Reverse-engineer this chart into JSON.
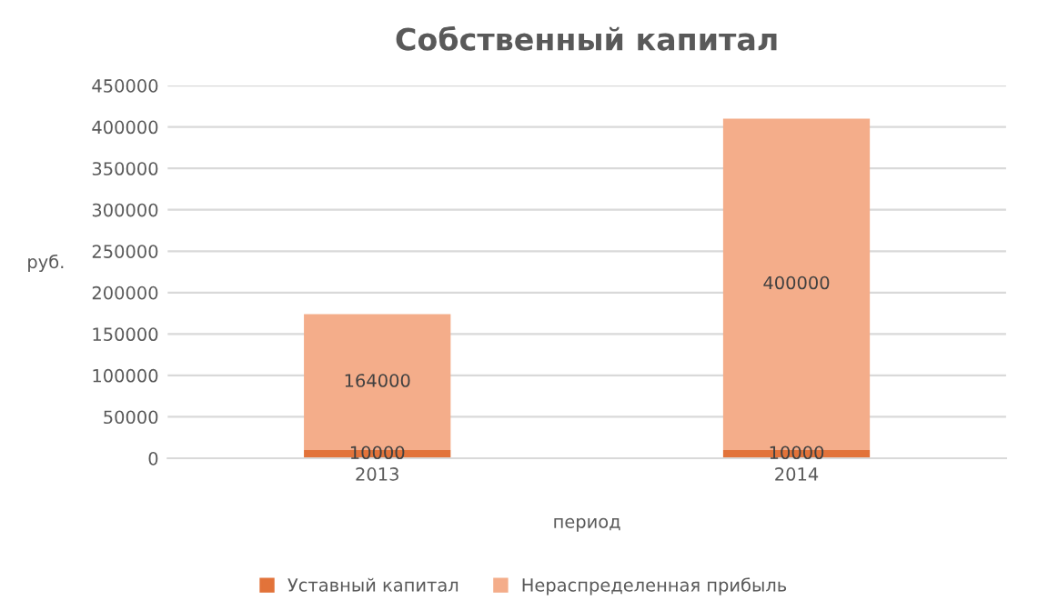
{
  "chart_data": {
    "type": "bar",
    "stacked": true,
    "title": "Собственный капитал",
    "xlabel": "период",
    "ylabel": "руб.",
    "categories": [
      "2013",
      "2014"
    ],
    "series": [
      {
        "name": "Уставный капитал",
        "color": "#e2733a",
        "values": [
          10000,
          10000
        ]
      },
      {
        "name": "Нераспределенная прибыль",
        "color": "#f4ad8a",
        "values": [
          164000,
          400000
        ]
      }
    ],
    "ylim": [
      0,
      450000
    ],
    "yticks": [
      0,
      50000,
      100000,
      150000,
      200000,
      250000,
      300000,
      350000,
      400000,
      450000
    ],
    "grid": "y",
    "legend": "bottom",
    "data_labels": true
  }
}
